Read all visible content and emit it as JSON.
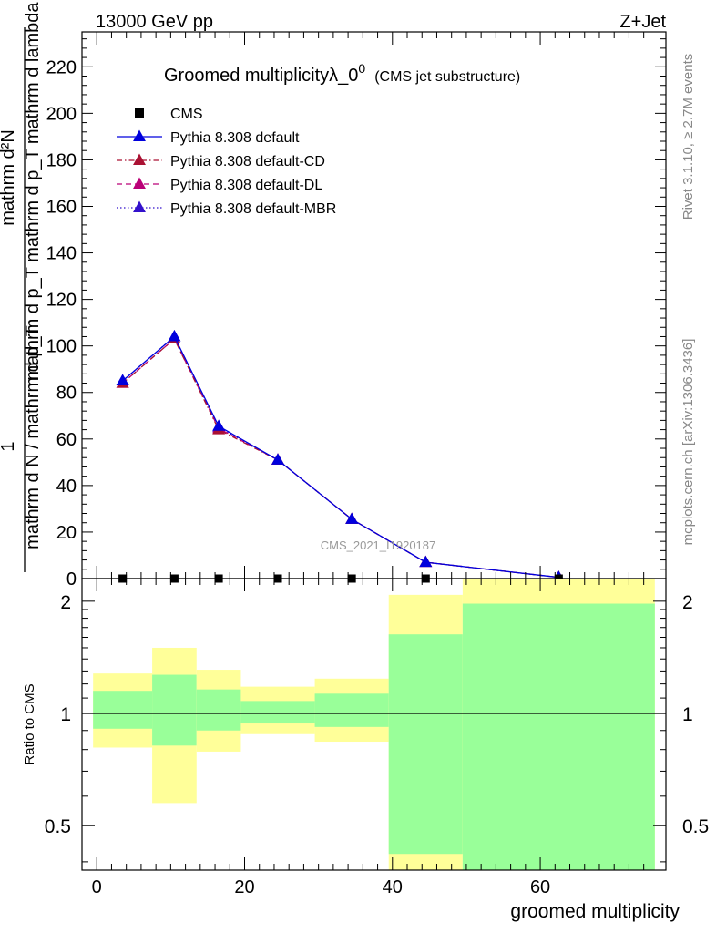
{
  "header": {
    "left": "13000 GeV pp",
    "right": "Z+Jet"
  },
  "side_labels": {
    "rivet": "Rivet 3.1.10, ≥ 2.7M events",
    "mcplots": "mcplots.cern.ch [arXiv:1306.3436]"
  },
  "watermark": "CMS_2021_I1920187",
  "chart_data": [
    {
      "type": "line",
      "title_main": "Groomed multiplicityλ_0",
      "title_sup": "0",
      "title_sub": "(CMS jet substructure)",
      "ylabel_numerator": "mathrm d²N",
      "ylabel_numerator_2": "mathrm d p_T mathrm d p_T mathrm d lambda",
      "ylabel_one": "1",
      "ylabel_denominator": "mathrm d N / mathrm d p_T",
      "ylim": [
        0,
        235
      ],
      "yticks": [
        0,
        20,
        40,
        60,
        80,
        100,
        120,
        140,
        160,
        180,
        200,
        220
      ],
      "ytick_labels": [
        "0",
        "20",
        "40",
        "60",
        "80",
        "100",
        "120",
        "140",
        "160",
        "180",
        "200",
        "220"
      ],
      "xlim": [
        -2,
        77
      ],
      "grid": false,
      "legend_position": "top-left",
      "data_series": {
        "name": "CMS",
        "x": [
          3.5,
          10.5,
          16.5,
          24.5,
          34.5,
          44.5,
          62.5
        ],
        "y": [
          0,
          0,
          0,
          0,
          0,
          0,
          0
        ]
      },
      "series": [
        {
          "name": "Pythia 8.308 default",
          "color": "#0000dd",
          "dash": "solid",
          "x": [
            3.5,
            10.5,
            16.5,
            24.5,
            34.5,
            44.5,
            62.5
          ],
          "y": [
            85,
            104,
            65.5,
            51,
            25.5,
            7,
            0.5
          ]
        },
        {
          "name": "Pythia 8.308 default-CD",
          "color": "#aa1133",
          "dash": "dashdot",
          "x": [
            3.5,
            10.5,
            16.5,
            24.5,
            34.5,
            44.5,
            62.5
          ],
          "y": [
            84,
            103,
            64,
            51,
            25.5,
            7,
            0.5
          ]
        },
        {
          "name": "Pythia 8.308 default-DL",
          "color": "#bb0077",
          "dash": "dashed",
          "x": [
            3.5,
            10.5,
            16.5,
            24.5,
            34.5,
            44.5,
            62.5
          ],
          "y": [
            84,
            103,
            64.5,
            51,
            25.5,
            7,
            0.5
          ]
        },
        {
          "name": "Pythia 8.308 default-MBR",
          "color": "#3311cc",
          "dash": "dotted",
          "x": [
            3.5,
            10.5,
            16.5,
            24.5,
            34.5,
            44.5,
            62.5
          ],
          "y": [
            85,
            104,
            65,
            51,
            25.5,
            7,
            0.5
          ]
        }
      ]
    },
    {
      "type": "area",
      "ylabel": "Ratio to CMS",
      "xlabel": "groomed multiplicity",
      "ylim": [
        0.38,
        2.3
      ],
      "yscale": "log",
      "yticks": [
        0.5,
        1,
        2
      ],
      "ytick_labels": [
        "0.5",
        "1",
        "2"
      ],
      "xlim": [
        -2,
        77
      ],
      "xticks": [
        0,
        20,
        40,
        60
      ],
      "xtick_labels": [
        "0",
        "20",
        "40",
        "60"
      ],
      "reference_line": 1,
      "bins": [
        {
          "x0": -0.5,
          "x1": 7.5,
          "yellow_lo": 0.81,
          "yellow_hi": 1.28,
          "green_lo": 0.91,
          "green_hi": 1.15
        },
        {
          "x0": 7.5,
          "x1": 13.5,
          "yellow_lo": 0.575,
          "yellow_hi": 1.5,
          "green_lo": 0.82,
          "green_hi": 1.27
        },
        {
          "x0": 13.5,
          "x1": 19.5,
          "yellow_lo": 0.79,
          "yellow_hi": 1.31,
          "green_lo": 0.9,
          "green_hi": 1.16
        },
        {
          "x0": 19.5,
          "x1": 29.5,
          "yellow_lo": 0.88,
          "yellow_hi": 1.18,
          "green_lo": 0.94,
          "green_hi": 1.08
        },
        {
          "x0": 29.5,
          "x1": 39.5,
          "yellow_lo": 0.84,
          "yellow_hi": 1.24,
          "green_lo": 0.92,
          "green_hi": 1.13
        },
        {
          "x0": 39.5,
          "x1": 49.5,
          "yellow_lo": 0.3,
          "yellow_hi": 2.08,
          "green_lo": 0.42,
          "green_hi": 1.63
        },
        {
          "x0": 49.5,
          "x1": 75.5,
          "yellow_lo": 0.3,
          "yellow_hi": 2.6,
          "green_lo": 0.3,
          "green_hi": 1.97
        }
      ],
      "colors": {
        "yellow": "#ffff99",
        "green": "#99ff99"
      }
    }
  ]
}
